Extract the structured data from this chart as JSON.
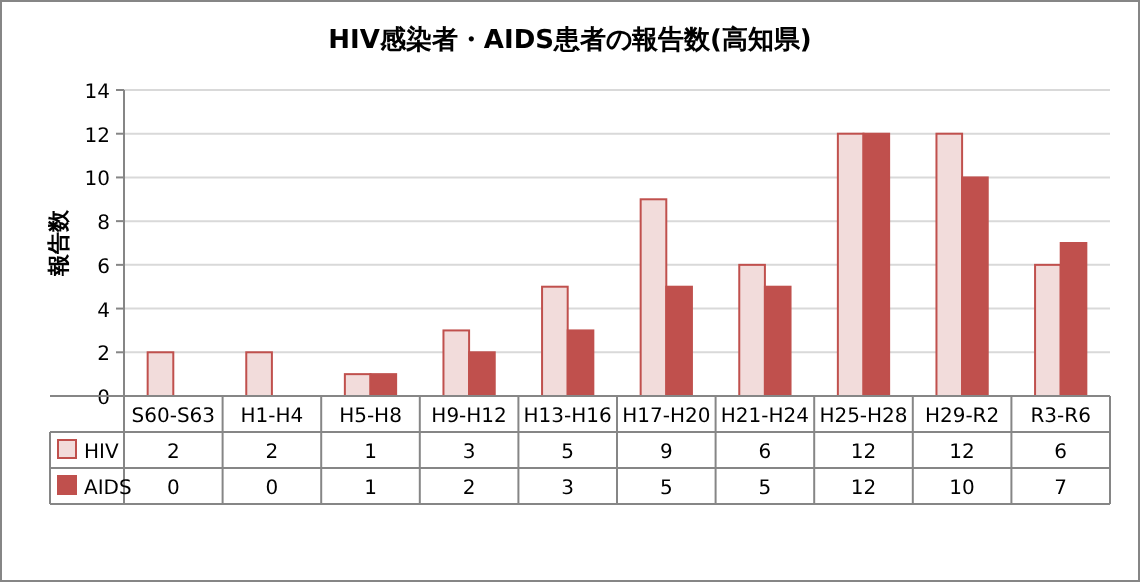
{
  "chart_data": {
    "type": "bar",
    "title": "HIV感染者・AIDS患者の報告数(高知県)",
    "ylabel": "報告数",
    "categories": [
      "S60-S63",
      "H1-H4",
      "H5-H8",
      "H9-H12",
      "H13-H16",
      "H17-H20",
      "H21-H24",
      "H25-H28",
      "H29-R2",
      "R3-R6"
    ],
    "series": [
      {
        "name": "HIV",
        "color": "#f2dcdb",
        "values": [
          2,
          2,
          1,
          3,
          5,
          9,
          6,
          12,
          12,
          6
        ]
      },
      {
        "name": "AIDS",
        "color": "#c0504d",
        "values": [
          0,
          0,
          1,
          2,
          3,
          5,
          5,
          12,
          10,
          7
        ]
      }
    ],
    "ylim": [
      0,
      14
    ],
    "yticks": [
      0,
      2,
      4,
      6,
      8,
      10,
      12,
      14
    ],
    "grid": "y",
    "legend": "bottom",
    "data_labels": true
  }
}
